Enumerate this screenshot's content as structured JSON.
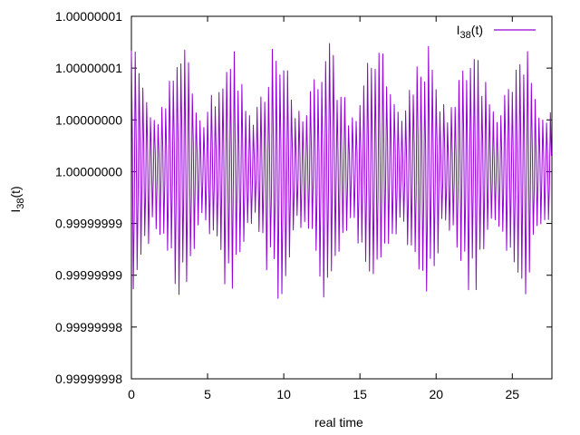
{
  "chart_data": {
    "type": "line",
    "xlabel": "real time",
    "ylabel": {
      "base": "I",
      "sub": "38",
      "tail": "(t)"
    },
    "xlim": [
      0,
      27.6
    ],
    "xticks": [
      0,
      5,
      10,
      15,
      20,
      25
    ],
    "yticks": [
      "0.99999998",
      "0.99999998",
      "0.99999999",
      "0.99999999",
      "1.00000000",
      "1.00000000",
      "1.00000001",
      "1.00000001"
    ],
    "ylim": [
      0,
      7
    ],
    "grid": false,
    "legend_position": "top-right",
    "series": [
      {
        "legend": {
          "base": "I",
          "sub": "38",
          "tail": "(t)"
        },
        "color": "#9400d3",
        "fast_period": 0.25,
        "modulation_period": 3.2,
        "mean": 4.05,
        "amplitude_min": 0.45,
        "amplitude_max": 2.4
      }
    ]
  }
}
